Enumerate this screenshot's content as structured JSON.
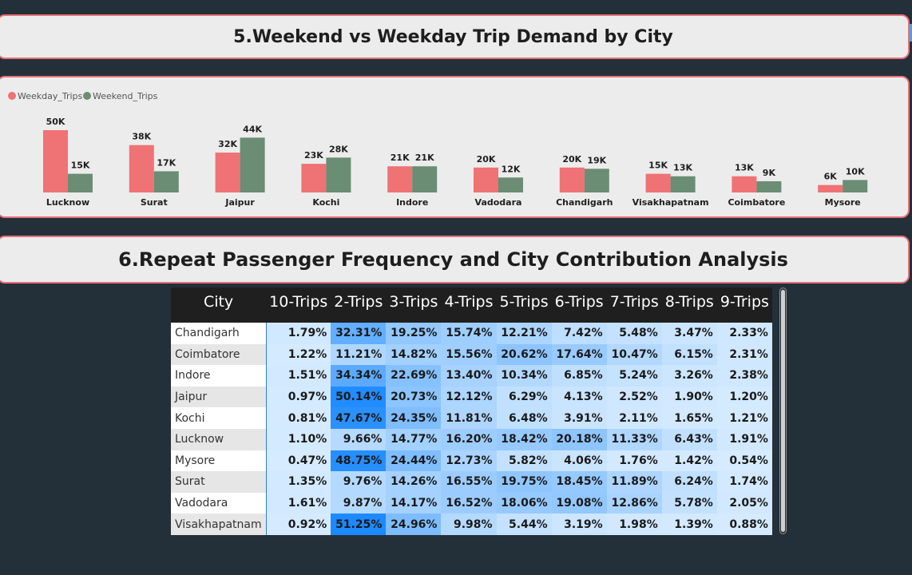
{
  "section5_title": "5.Weekend vs Weekday Trip Demand by City",
  "section6_title": "6.Repeat Passenger Frequency and City Contribution Analysis",
  "chart_data": {
    "type": "bar",
    "categories": [
      "Lucknow",
      "Surat",
      "Jaipur",
      "Kochi",
      "Indore",
      "Vadodara",
      "Chandigarh",
      "Visakhapatnam",
      "Coimbatore",
      "Mysore"
    ],
    "series": [
      {
        "name": "Weekday_Trips",
        "color": "#ef7275",
        "values": [
          50,
          38,
          32,
          23,
          21,
          20,
          20,
          15,
          13,
          6
        ],
        "labels": [
          "50K",
          "38K",
          "32K",
          "23K",
          "21K",
          "20K",
          "20K",
          "15K",
          "13K",
          "6K"
        ]
      },
      {
        "name": "Weekend_Trips",
        "color": "#6a8d73",
        "values": [
          15,
          17,
          44,
          28,
          21,
          12,
          19,
          13,
          9,
          10
        ],
        "labels": [
          "15K",
          "17K",
          "44K",
          "28K",
          "21K",
          "12K",
          "19K",
          "13K",
          "9K",
          "10K"
        ]
      }
    ],
    "legend_position": "top-left",
    "unit": "K",
    "ylim": [
      0,
      50
    ]
  },
  "matrix": {
    "headers": [
      "City",
      "10-Trips",
      "2-Trips",
      "3-Trips",
      "4-Trips",
      "5-Trips",
      "6-Trips",
      "7-Trips",
      "8-Trips",
      "9-Trips"
    ],
    "rows": [
      {
        "city": "Chandigarh",
        "values": [
          "1.79%",
          "32.31%",
          "19.25%",
          "15.74%",
          "12.21%",
          "7.42%",
          "5.48%",
          "3.47%",
          "2.33%"
        ]
      },
      {
        "city": "Coimbatore",
        "values": [
          "1.22%",
          "11.21%",
          "14.82%",
          "15.56%",
          "20.62%",
          "17.64%",
          "10.47%",
          "6.15%",
          "2.31%"
        ]
      },
      {
        "city": "Indore",
        "values": [
          "1.51%",
          "34.34%",
          "22.69%",
          "13.40%",
          "10.34%",
          "6.85%",
          "5.24%",
          "3.26%",
          "2.38%"
        ]
      },
      {
        "city": "Jaipur",
        "values": [
          "0.97%",
          "50.14%",
          "20.73%",
          "12.12%",
          "6.29%",
          "4.13%",
          "2.52%",
          "1.90%",
          "1.20%"
        ]
      },
      {
        "city": "Kochi",
        "values": [
          "0.81%",
          "47.67%",
          "24.35%",
          "11.81%",
          "6.48%",
          "3.91%",
          "2.11%",
          "1.65%",
          "1.21%"
        ]
      },
      {
        "city": "Lucknow",
        "values": [
          "1.10%",
          "9.66%",
          "14.77%",
          "16.20%",
          "18.42%",
          "20.18%",
          "11.33%",
          "6.43%",
          "1.91%"
        ]
      },
      {
        "city": "Mysore",
        "values": [
          "0.47%",
          "48.75%",
          "24.44%",
          "12.73%",
          "5.82%",
          "4.06%",
          "1.76%",
          "1.42%",
          "0.54%"
        ]
      },
      {
        "city": "Surat",
        "values": [
          "1.35%",
          "9.76%",
          "14.26%",
          "16.55%",
          "19.75%",
          "18.45%",
          "11.89%",
          "6.24%",
          "1.74%"
        ]
      },
      {
        "city": "Vadodara",
        "values": [
          "1.61%",
          "9.87%",
          "14.17%",
          "16.52%",
          "18.06%",
          "19.08%",
          "12.86%",
          "5.78%",
          "2.05%"
        ]
      },
      {
        "city": "Visakhapatnam",
        "values": [
          "0.92%",
          "51.25%",
          "24.96%",
          "9.98%",
          "5.44%",
          "3.19%",
          "1.98%",
          "1.39%",
          "0.88%"
        ]
      }
    ]
  }
}
